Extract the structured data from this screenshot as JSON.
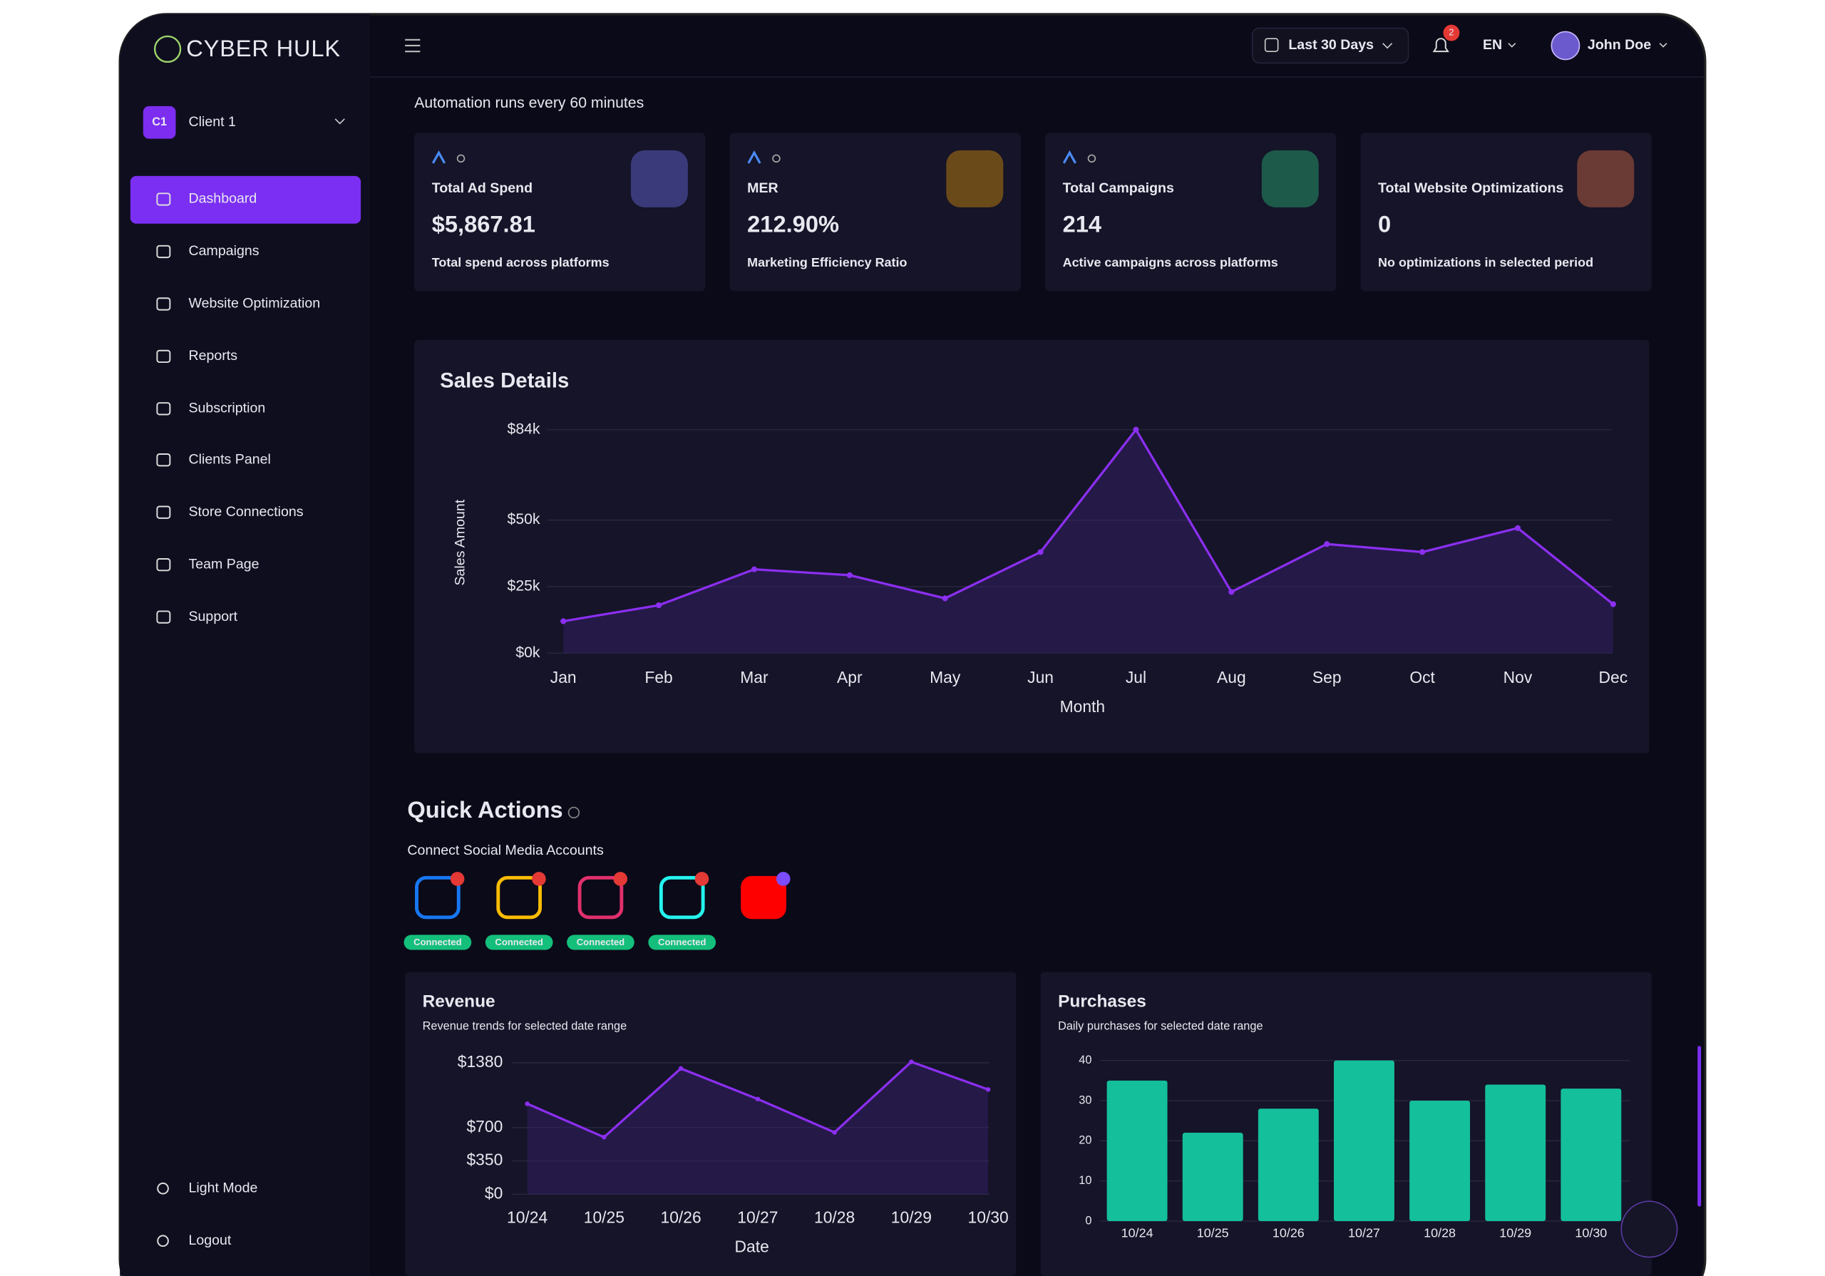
{
  "brand": "CYBER HULK",
  "client": {
    "badge": "C1",
    "name": "Client 1"
  },
  "nav": [
    "Dashboard",
    "Campaigns",
    "Website Optimization",
    "Reports",
    "Subscription",
    "Clients Panel",
    "Store Connections",
    "Team Page",
    "Support"
  ],
  "nav_bottom": [
    "Light Mode",
    "Logout"
  ],
  "topbar": {
    "date_range": "Last 30 Days",
    "notifications": "2",
    "language": "EN",
    "user": "John Doe"
  },
  "automation_note": "Automation runs every 60 minutes",
  "kpis": [
    {
      "title": "Total Ad Spend",
      "value": "$5,867.81",
      "caption": "Total spend across platforms"
    },
    {
      "title": "MER",
      "value": "212.90%",
      "caption": "Marketing Efficiency Ratio"
    },
    {
      "title": "Total Campaigns",
      "value": "214",
      "caption": "Active campaigns across platforms"
    },
    {
      "title": "Total Website Optimizations",
      "value": "0",
      "caption": "No optimizations in selected period"
    }
  ],
  "quick_actions": {
    "title": "Quick Actions",
    "subtitle": "Connect Social Media Accounts",
    "connections": [
      "Connected",
      "Connected",
      "Connected",
      "Connected"
    ]
  },
  "chart_data": [
    {
      "type": "line",
      "title": "Sales Details",
      "x_label": "Month",
      "y_label": "Sales Amount",
      "color": "#8b2ff0",
      "categories": [
        "Jan",
        "Feb",
        "Mar",
        "Apr",
        "May",
        "Jun",
        "Jul",
        "Aug",
        "Sep",
        "Oct",
        "Nov",
        "Dec"
      ],
      "values": [
        12000,
        18000,
        31500,
        29300,
        20600,
        38000,
        84000,
        23000,
        41000,
        38000,
        47000,
        18400
      ],
      "ylim": [
        0,
        84000
      ],
      "yticks": [
        {
          "value": 0,
          "label": "$0k"
        },
        {
          "value": 25000,
          "label": "$25k"
        },
        {
          "value": 50000,
          "label": "$50k"
        },
        {
          "value": 84000,
          "label": "$84k"
        }
      ],
      "grid": true
    },
    {
      "type": "line",
      "title": "Revenue",
      "subtitle": "Revenue trends for selected date range",
      "x_label": "Date",
      "color": "#8b2ff0",
      "categories": [
        "10/24",
        "10/25",
        "10/26",
        "10/27",
        "10/28",
        "10/29",
        "10/30"
      ],
      "values": [
        950,
        600,
        1320,
        1000,
        650,
        1390,
        1100
      ],
      "ylim": [
        0,
        1400
      ],
      "yticks": [
        {
          "value": 0,
          "label": "$0"
        },
        {
          "value": 350,
          "label": "$350"
        },
        {
          "value": 700,
          "label": "$700"
        },
        {
          "value": 1380,
          "label": "$1380"
        }
      ],
      "grid": true
    },
    {
      "type": "bar",
      "title": "Purchases",
      "subtitle": "Daily purchases for selected date range",
      "color": "#14bf9c",
      "categories": [
        "10/24",
        "10/25",
        "10/26",
        "10/27",
        "10/28",
        "10/29",
        "10/30"
      ],
      "values": [
        35,
        22,
        28,
        40,
        30,
        34,
        33
      ],
      "ylim": [
        0,
        40
      ],
      "yticks": [
        0,
        10,
        20,
        30,
        40
      ],
      "grid": true
    }
  ]
}
